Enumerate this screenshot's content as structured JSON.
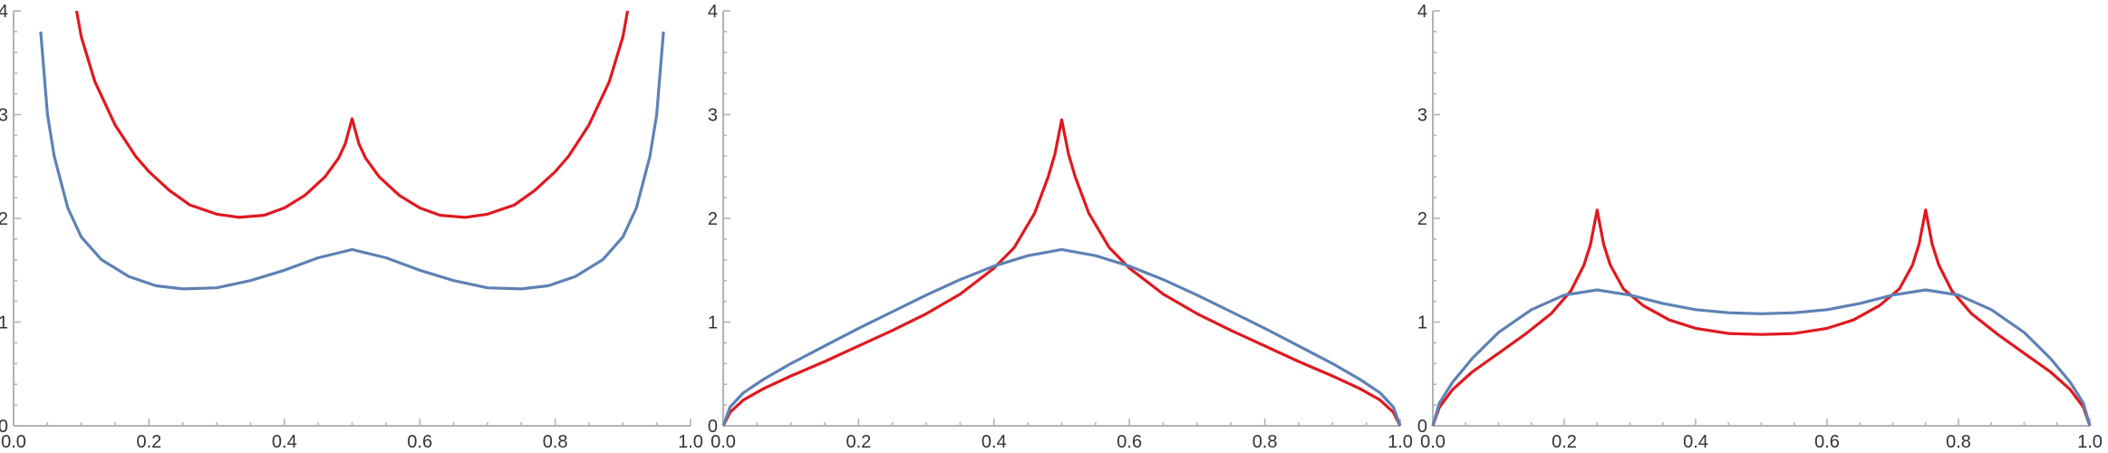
{
  "colors": {
    "red": "#e0191f",
    "blue": "#5e81b5",
    "axis": "#b3b3b3",
    "text": "#333333"
  },
  "chart_data": [
    {
      "type": "line",
      "title": "",
      "xlabel": "",
      "ylabel": "",
      "xlim": [
        0,
        1
      ],
      "ylim": [
        0,
        4
      ],
      "grid": false,
      "x_ticks": [
        "0.0",
        "0.2",
        "0.4",
        "0.6",
        "0.8",
        "1.0"
      ],
      "y_ticks": [
        "0",
        "1",
        "2",
        "3",
        "4"
      ],
      "series": [
        {
          "color": "#e0191f",
          "points": [
            [
              0.093,
              4.0
            ],
            [
              0.1,
              3.75
            ],
            [
              0.12,
              3.32
            ],
            [
              0.15,
              2.9
            ],
            [
              0.18,
              2.6
            ],
            [
              0.2,
              2.45
            ],
            [
              0.23,
              2.27
            ],
            [
              0.26,
              2.13
            ],
            [
              0.3,
              2.04
            ],
            [
              0.333,
              2.01
            ],
            [
              0.37,
              2.03
            ],
            [
              0.4,
              2.1
            ],
            [
              0.43,
              2.22
            ],
            [
              0.46,
              2.4
            ],
            [
              0.48,
              2.58
            ],
            [
              0.49,
              2.72
            ],
            [
              0.5,
              2.96
            ],
            [
              0.51,
              2.72
            ],
            [
              0.52,
              2.58
            ],
            [
              0.54,
              2.4
            ],
            [
              0.57,
              2.22
            ],
            [
              0.6,
              2.1
            ],
            [
              0.63,
              2.03
            ],
            [
              0.667,
              2.01
            ],
            [
              0.7,
              2.04
            ],
            [
              0.74,
              2.13
            ],
            [
              0.77,
              2.27
            ],
            [
              0.8,
              2.45
            ],
            [
              0.82,
              2.6
            ],
            [
              0.85,
              2.9
            ],
            [
              0.88,
              3.32
            ],
            [
              0.9,
              3.75
            ],
            [
              0.907,
              4.0
            ]
          ]
        },
        {
          "color": "#5e81b5",
          "points": [
            [
              0.04,
              3.8
            ],
            [
              0.05,
              3.0
            ],
            [
              0.06,
              2.6
            ],
            [
              0.08,
              2.1
            ],
            [
              0.1,
              1.82
            ],
            [
              0.13,
              1.6
            ],
            [
              0.17,
              1.44
            ],
            [
              0.21,
              1.35
            ],
            [
              0.25,
              1.32
            ],
            [
              0.3,
              1.33
            ],
            [
              0.35,
              1.4
            ],
            [
              0.4,
              1.5
            ],
            [
              0.45,
              1.62
            ],
            [
              0.5,
              1.7
            ],
            [
              0.55,
              1.62
            ],
            [
              0.6,
              1.5
            ],
            [
              0.65,
              1.4
            ],
            [
              0.7,
              1.33
            ],
            [
              0.75,
              1.32
            ],
            [
              0.79,
              1.35
            ],
            [
              0.83,
              1.44
            ],
            [
              0.87,
              1.6
            ],
            [
              0.9,
              1.82
            ],
            [
              0.92,
              2.1
            ],
            [
              0.94,
              2.6
            ],
            [
              0.95,
              3.0
            ],
            [
              0.96,
              3.8
            ]
          ]
        }
      ]
    },
    {
      "type": "line",
      "title": "",
      "xlabel": "",
      "ylabel": "",
      "xlim": [
        0,
        1
      ],
      "ylim": [
        0,
        4
      ],
      "grid": false,
      "x_ticks": [
        "0.0",
        "0.2",
        "0.4",
        "0.6",
        "0.8",
        "1.0"
      ],
      "y_ticks": [
        "0",
        "1",
        "2",
        "3",
        "4"
      ],
      "series": [
        {
          "color": "#e0191f",
          "points": [
            [
              0.0,
              0.0
            ],
            [
              0.01,
              0.13
            ],
            [
              0.03,
              0.25
            ],
            [
              0.06,
              0.36
            ],
            [
              0.1,
              0.48
            ],
            [
              0.15,
              0.62
            ],
            [
              0.2,
              0.77
            ],
            [
              0.25,
              0.92
            ],
            [
              0.3,
              1.08
            ],
            [
              0.35,
              1.27
            ],
            [
              0.4,
              1.52
            ],
            [
              0.43,
              1.72
            ],
            [
              0.46,
              2.05
            ],
            [
              0.48,
              2.4
            ],
            [
              0.49,
              2.62
            ],
            [
              0.5,
              2.95
            ],
            [
              0.51,
              2.62
            ],
            [
              0.52,
              2.4
            ],
            [
              0.54,
              2.05
            ],
            [
              0.57,
              1.72
            ],
            [
              0.6,
              1.52
            ],
            [
              0.65,
              1.27
            ],
            [
              0.7,
              1.08
            ],
            [
              0.75,
              0.92
            ],
            [
              0.8,
              0.77
            ],
            [
              0.85,
              0.62
            ],
            [
              0.9,
              0.48
            ],
            [
              0.94,
              0.36
            ],
            [
              0.97,
              0.25
            ],
            [
              0.99,
              0.13
            ],
            [
              1.0,
              0.0
            ]
          ]
        },
        {
          "color": "#5e81b5",
          "points": [
            [
              0.0,
              0.0
            ],
            [
              0.01,
              0.18
            ],
            [
              0.03,
              0.32
            ],
            [
              0.06,
              0.45
            ],
            [
              0.1,
              0.6
            ],
            [
              0.15,
              0.77
            ],
            [
              0.2,
              0.94
            ],
            [
              0.25,
              1.1
            ],
            [
              0.3,
              1.26
            ],
            [
              0.35,
              1.41
            ],
            [
              0.4,
              1.54
            ],
            [
              0.45,
              1.64
            ],
            [
              0.5,
              1.7
            ],
            [
              0.55,
              1.64
            ],
            [
              0.6,
              1.54
            ],
            [
              0.65,
              1.41
            ],
            [
              0.7,
              1.26
            ],
            [
              0.75,
              1.1
            ],
            [
              0.8,
              0.94
            ],
            [
              0.85,
              0.77
            ],
            [
              0.9,
              0.6
            ],
            [
              0.94,
              0.45
            ],
            [
              0.97,
              0.32
            ],
            [
              0.99,
              0.18
            ],
            [
              1.0,
              0.0
            ]
          ]
        }
      ]
    },
    {
      "type": "line",
      "title": "",
      "xlabel": "",
      "ylabel": "",
      "xlim": [
        0,
        1
      ],
      "ylim": [
        0,
        4
      ],
      "grid": false,
      "x_ticks": [
        "0.0",
        "0.2",
        "0.4",
        "0.6",
        "0.8",
        "1.0"
      ],
      "y_ticks": [
        "0",
        "1",
        "2",
        "3",
        "4"
      ],
      "series": [
        {
          "color": "#e0191f",
          "points": [
            [
              0.0,
              0.0
            ],
            [
              0.01,
              0.18
            ],
            [
              0.03,
              0.35
            ],
            [
              0.06,
              0.52
            ],
            [
              0.1,
              0.7
            ],
            [
              0.14,
              0.88
            ],
            [
              0.18,
              1.08
            ],
            [
              0.21,
              1.3
            ],
            [
              0.23,
              1.55
            ],
            [
              0.24,
              1.75
            ],
            [
              0.25,
              2.08
            ],
            [
              0.26,
              1.75
            ],
            [
              0.27,
              1.55
            ],
            [
              0.29,
              1.32
            ],
            [
              0.32,
              1.16
            ],
            [
              0.36,
              1.02
            ],
            [
              0.4,
              0.94
            ],
            [
              0.45,
              0.89
            ],
            [
              0.5,
              0.88
            ],
            [
              0.55,
              0.89
            ],
            [
              0.6,
              0.94
            ],
            [
              0.64,
              1.02
            ],
            [
              0.68,
              1.16
            ],
            [
              0.71,
              1.32
            ],
            [
              0.73,
              1.55
            ],
            [
              0.74,
              1.75
            ],
            [
              0.75,
              2.08
            ],
            [
              0.76,
              1.75
            ],
            [
              0.77,
              1.55
            ],
            [
              0.79,
              1.3
            ],
            [
              0.82,
              1.08
            ],
            [
              0.86,
              0.88
            ],
            [
              0.9,
              0.7
            ],
            [
              0.94,
              0.52
            ],
            [
              0.97,
              0.35
            ],
            [
              0.99,
              0.18
            ],
            [
              1.0,
              0.0
            ]
          ]
        },
        {
          "color": "#5e81b5",
          "points": [
            [
              0.0,
              0.0
            ],
            [
              0.01,
              0.22
            ],
            [
              0.03,
              0.42
            ],
            [
              0.06,
              0.65
            ],
            [
              0.1,
              0.9
            ],
            [
              0.15,
              1.12
            ],
            [
              0.2,
              1.26
            ],
            [
              0.25,
              1.31
            ],
            [
              0.3,
              1.26
            ],
            [
              0.35,
              1.18
            ],
            [
              0.4,
              1.12
            ],
            [
              0.45,
              1.09
            ],
            [
              0.5,
              1.08
            ],
            [
              0.55,
              1.09
            ],
            [
              0.6,
              1.12
            ],
            [
              0.65,
              1.18
            ],
            [
              0.7,
              1.26
            ],
            [
              0.75,
              1.31
            ],
            [
              0.8,
              1.26
            ],
            [
              0.85,
              1.12
            ],
            [
              0.9,
              0.9
            ],
            [
              0.94,
              0.65
            ],
            [
              0.97,
              0.42
            ],
            [
              0.99,
              0.22
            ],
            [
              1.0,
              0.0
            ]
          ]
        }
      ]
    }
  ]
}
